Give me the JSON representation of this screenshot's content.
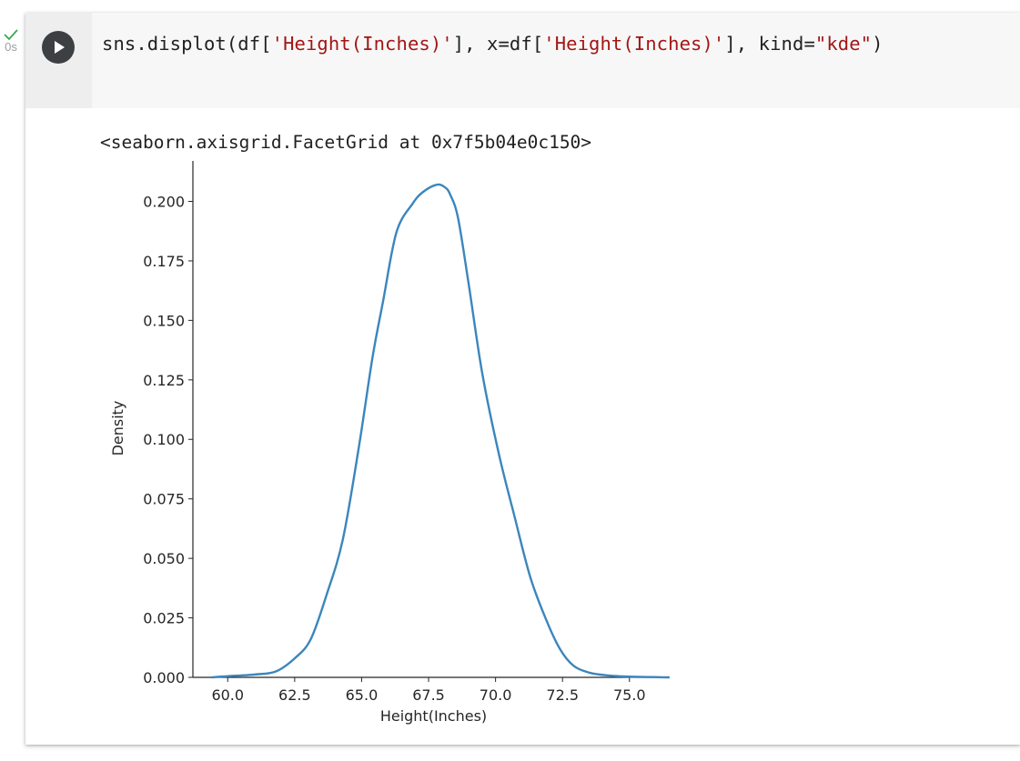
{
  "cell": {
    "status": "success",
    "execution_time": "0s",
    "run_icon": "play-icon",
    "status_icon": "check-icon",
    "status_color": "#34a853"
  },
  "code": {
    "tokens": [
      {
        "text": "sns.displot(df[",
        "kind": "plain"
      },
      {
        "text": "'Height(Inches)'",
        "kind": "string"
      },
      {
        "text": "], x=df[",
        "kind": "plain"
      },
      {
        "text": "'Height(Inches)'",
        "kind": "string"
      },
      {
        "text": "], kind=",
        "kind": "plain"
      },
      {
        "text": "\"kde\"",
        "kind": "string"
      },
      {
        "text": ")",
        "kind": "plain"
      }
    ],
    "string_color": "#a31515"
  },
  "output": {
    "repr": "<seaborn.axisgrid.FacetGrid at 0x7f5b04e0c150>"
  },
  "chart_data": {
    "type": "line",
    "xlabel": "Height(Inches)",
    "ylabel": "Density",
    "xlim": [
      58.7,
      76.4
    ],
    "ylim": [
      0,
      0.217
    ],
    "xticks": [
      60.0,
      62.5,
      65.0,
      67.5,
      70.0,
      72.5,
      75.0
    ],
    "xtick_labels": [
      "60.0",
      "62.5",
      "65.0",
      "67.5",
      "70.0",
      "72.5",
      "75.0"
    ],
    "yticks": [
      0.0,
      0.025,
      0.05,
      0.075,
      0.1,
      0.125,
      0.15,
      0.175,
      0.2
    ],
    "ytick_labels": [
      "0.000",
      "0.025",
      "0.050",
      "0.075",
      "0.100",
      "0.125",
      "0.150",
      "0.175",
      "0.200"
    ],
    "grid": false,
    "spines": "left-bottom",
    "series": [
      {
        "color": "#3b86bd",
        "x": [
          59.4,
          60.0,
          61.0,
          61.8,
          62.5,
          63.1,
          63.7,
          64.3,
          64.9,
          65.4,
          65.8,
          66.3,
          66.9,
          67.3,
          67.8,
          68.1,
          68.3,
          68.6,
          69.0,
          69.5,
          70.1,
          70.7,
          71.3,
          71.9,
          72.4,
          72.9,
          73.5,
          74.2,
          75.0,
          75.9,
          76.5
        ],
        "y": [
          0.0,
          0.0005,
          0.0012,
          0.0025,
          0.008,
          0.016,
          0.035,
          0.058,
          0.097,
          0.134,
          0.158,
          0.187,
          0.199,
          0.204,
          0.207,
          0.206,
          0.203,
          0.193,
          0.165,
          0.128,
          0.095,
          0.068,
          0.042,
          0.024,
          0.012,
          0.005,
          0.002,
          0.0008,
          0.0003,
          0.0001,
          0.0
        ]
      }
    ]
  }
}
